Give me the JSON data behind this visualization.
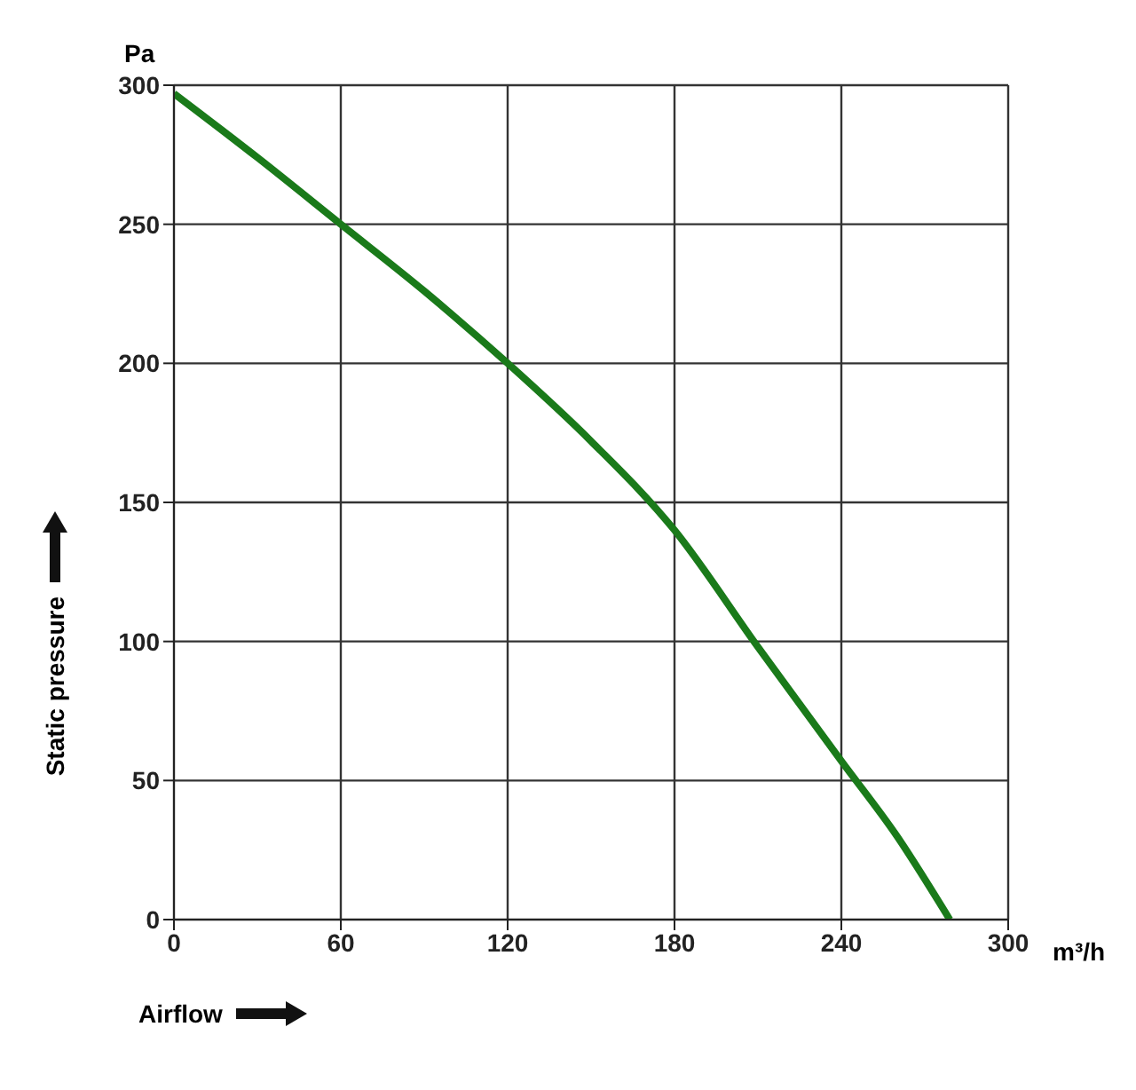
{
  "chart_data": {
    "type": "line",
    "xlabel": "Airflow",
    "ylabel": "Static pressure",
    "annotations": [
      "Pa",
      "m³/h"
    ],
    "x": [
      0,
      30,
      60,
      90,
      120,
      150,
      180,
      210,
      240,
      260,
      279
    ],
    "series": [
      {
        "color": "#1a7a1a",
        "values": [
          297,
          274,
          250,
          226,
          200,
          172,
          140,
          98,
          57,
          30,
          0
        ]
      }
    ],
    "xlim": [
      0,
      300
    ],
    "xticks": [
      0,
      60,
      120,
      180,
      240,
      300
    ],
    "ylim": [
      0,
      300
    ],
    "yticks": [
      0,
      50,
      100,
      150,
      200,
      250,
      300
    ],
    "grid": true,
    "legend": false,
    "marker": "none",
    "line_style": "solid"
  }
}
